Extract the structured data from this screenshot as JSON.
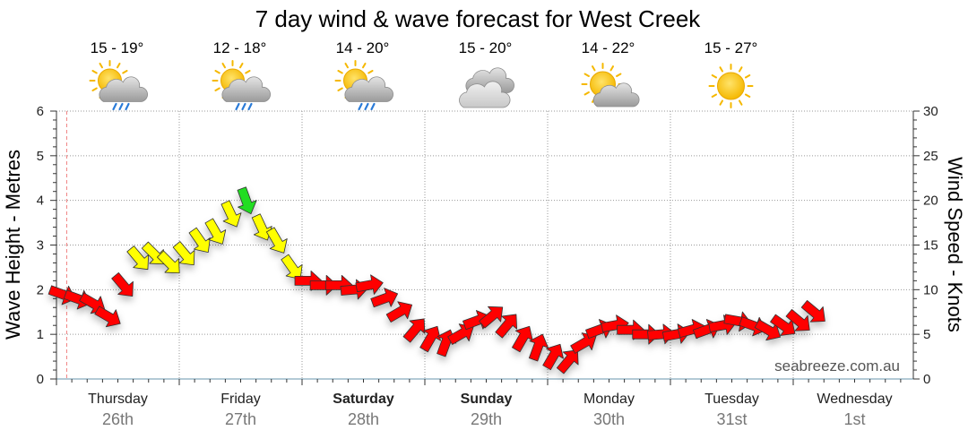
{
  "title": "7 day wind & wave forecast for West Creek",
  "watermark": "seabreeze.com.au",
  "chart_data": {
    "type": "line",
    "title": "7 day wind & wave forecast for West Creek",
    "ylabel_left": "Wave Height - Metres",
    "ylabel_right": "Wind Speed - Knots",
    "ylim_left": [
      0,
      6
    ],
    "ylim_right": [
      0,
      30
    ],
    "yticks_left": [
      "0",
      "1",
      "2",
      "3",
      "4",
      "5",
      "6"
    ],
    "yticks_right": [
      "0",
      "5",
      "10",
      "15",
      "20",
      "25",
      "30"
    ],
    "grid": true,
    "days": [
      {
        "day": "Thursday",
        "date": "26th",
        "bold": false
      },
      {
        "day": "Friday",
        "date": "27th",
        "bold": false
      },
      {
        "day": "Saturday",
        "date": "28th",
        "bold": true
      },
      {
        "day": "Sunday",
        "date": "29th",
        "bold": true
      },
      {
        "day": "Monday",
        "date": "30th",
        "bold": false
      },
      {
        "day": "Tuesday",
        "date": "31st",
        "bold": false
      },
      {
        "day": "Wednesday",
        "date": "1st",
        "bold": false
      }
    ],
    "weather": [
      {
        "temp": "15 - 19°",
        "icon": "showers-icon"
      },
      {
        "temp": "12 - 18°",
        "icon": "showers-icon"
      },
      {
        "temp": "14 - 20°",
        "icon": "showers-icon"
      },
      {
        "temp": "15 - 20°",
        "icon": "cloudy-icon"
      },
      {
        "temp": "14 - 22°",
        "icon": "partly-cloudy-icon"
      },
      {
        "temp": "15 - 27°",
        "icon": "sunny-icon"
      }
    ],
    "wind_series": {
      "name": "Wind Speed",
      "t_hours": [
        0,
        3,
        6,
        9,
        12,
        15,
        18,
        21,
        24,
        27,
        30,
        33,
        36,
        39,
        42,
        45,
        48,
        51,
        54,
        57,
        60,
        63,
        66,
        69,
        72,
        75,
        78,
        81,
        84,
        87,
        90,
        93,
        96,
        99,
        102,
        105,
        108,
        111,
        114,
        117,
        120,
        123,
        126,
        129,
        132,
        135,
        138,
        141,
        144,
        147
      ],
      "knots": [
        9.5,
        9,
        8.5,
        7,
        10.5,
        13.5,
        14,
        13,
        14,
        15.5,
        16.5,
        18.5,
        20,
        17,
        15.5,
        12.5,
        11,
        10.5,
        10.5,
        10,
        10.5,
        9,
        7.5,
        5.5,
        4.5,
        4,
        5,
        6.5,
        7,
        6,
        4.5,
        3.5,
        2.5,
        2,
        4,
        5.5,
        6,
        5.5,
        5,
        5,
        5,
        5.5,
        5.5,
        6,
        6.5,
        6,
        5.5,
        6,
        6.5,
        7.5
      ],
      "direction_deg": [
        250,
        250,
        240,
        240,
        220,
        220,
        225,
        225,
        220,
        215,
        210,
        205,
        200,
        205,
        210,
        215,
        270,
        270,
        270,
        275,
        280,
        290,
        300,
        320,
        330,
        340,
        300,
        290,
        310,
        320,
        330,
        340,
        330,
        320,
        300,
        290,
        280,
        270,
        270,
        275,
        280,
        285,
        290,
        280,
        260,
        250,
        240,
        235,
        230,
        230
      ]
    },
    "color_bands_knots": [
      {
        "min": 0,
        "max": 12,
        "color": "#ff0000"
      },
      {
        "min": 12,
        "max": 19,
        "color": "#ffff00"
      },
      {
        "min": 19,
        "max": 30,
        "color": "#22dd22"
      }
    ],
    "now_marker_hours": 2
  }
}
